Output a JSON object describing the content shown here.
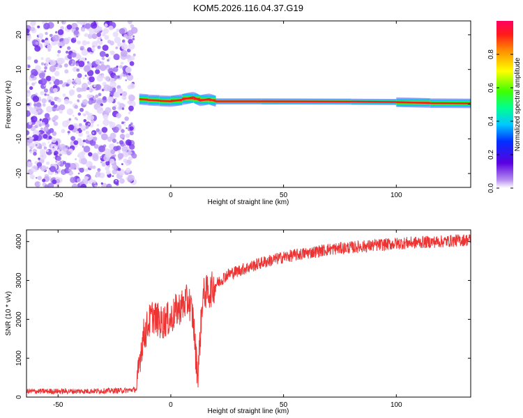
{
  "title": "KOM5.2026.116.04.37.G19",
  "colors": {
    "line": "#ee3333",
    "axis": "#000000",
    "scatter": "#7b2cf0",
    "band": "#ff1a1a"
  },
  "chart_data": [
    {
      "type": "heatmap",
      "title": "KOM5.2026.116.04.37.G19",
      "xlabel": "Height of straight line (km)",
      "ylabel": "Frequency (Hz)",
      "xlim": [
        -64,
        133
      ],
      "ylim": [
        -24,
        24
      ],
      "x_ticks": [
        -50,
        0,
        50,
        100
      ],
      "x_tick_labels": [
        "-50",
        "0",
        "50",
        "100"
      ],
      "y_ticks": [
        -20,
        -10,
        0,
        10,
        20
      ],
      "y_tick_labels": [
        "-20",
        "-10",
        "0",
        "10",
        "20"
      ],
      "noise_region_km": [
        -64,
        -16
      ],
      "signal_start_km": -16,
      "signal_frequency_hz": [
        {
          "x": -14,
          "y": 1.5
        },
        {
          "x": -10,
          "y": 1.2
        },
        {
          "x": -5,
          "y": 1.0
        },
        {
          "x": 0,
          "y": 0.8
        },
        {
          "x": 5,
          "y": 1.3
        },
        {
          "x": 10,
          "y": 2.0
        },
        {
          "x": 13,
          "y": 1.0
        },
        {
          "x": 17,
          "y": 1.5
        },
        {
          "x": 20,
          "y": 0.8
        },
        {
          "x": 40,
          "y": 0.8
        },
        {
          "x": 80,
          "y": 0.7
        },
        {
          "x": 100,
          "y": 0.6
        },
        {
          "x": 115,
          "y": 0.3
        },
        {
          "x": 133,
          "y": 0.2
        }
      ],
      "colorbar": {
        "label": "Normalized spectral amplitude",
        "range": [
          0,
          1
        ],
        "ticks": [
          0,
          0.2,
          0.4,
          0.6,
          0.8
        ],
        "tick_labels": [
          "0.0",
          "0.2",
          "0.4",
          "0.6",
          "0.8"
        ]
      }
    },
    {
      "type": "line",
      "xlabel": "Height of straight line (km)",
      "ylabel": "SNR (10 * v/v)",
      "xlim": [
        -64,
        133
      ],
      "ylim": [
        0,
        4300
      ],
      "x_ticks": [
        -50,
        0,
        50,
        100
      ],
      "x_tick_labels": [
        "-50",
        "0",
        "50",
        "100"
      ],
      "y_ticks": [
        0,
        1000,
        2000,
        3000,
        4000
      ],
      "y_tick_labels": [
        "0",
        "1000",
        "2000",
        "3000",
        "4000"
      ],
      "series": [
        {
          "name": "SNR",
          "x": [
            -64,
            -40,
            -20,
            -15,
            -14,
            -13,
            -12,
            -11,
            -10,
            -8,
            -6,
            -4,
            -2,
            0,
            2,
            4,
            6,
            8,
            10,
            11,
            12,
            13,
            14,
            15,
            17,
            20,
            25,
            30,
            40,
            50,
            60,
            70,
            80,
            90,
            100,
            110,
            120,
            133
          ],
          "y": [
            150,
            150,
            170,
            200,
            900,
            1300,
            1600,
            1700,
            1900,
            2100,
            2000,
            1900,
            2000,
            2000,
            2200,
            2300,
            2400,
            2500,
            2000,
            1100,
            600,
            1500,
            2500,
            2700,
            2700,
            2900,
            3150,
            3250,
            3450,
            3600,
            3700,
            3800,
            3850,
            3900,
            3950,
            3980,
            4000,
            4050
          ]
        }
      ]
    }
  ]
}
